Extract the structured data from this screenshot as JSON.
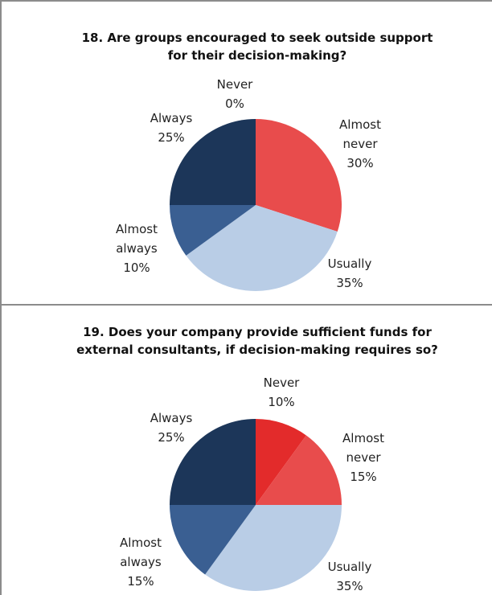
{
  "chart_data": [
    {
      "type": "pie",
      "title_lines": [
        "18. Are groups encouraged to seek outside support",
        "for their decision-making?"
      ],
      "slices": [
        {
          "label_lines": [
            "Never",
            "0%"
          ],
          "value": 0,
          "color": "#e32b2b"
        },
        {
          "label_lines": [
            "Almost",
            "never",
            "30%"
          ],
          "value": 30,
          "color": "#e84c4c"
        },
        {
          "label_lines": [
            "Usually",
            "35%"
          ],
          "value": 35,
          "color": "#b9cde6"
        },
        {
          "label_lines": [
            "Almost",
            "always",
            "10%"
          ],
          "value": 10,
          "color": "#3a5f92"
        },
        {
          "label_lines": [
            "Always",
            "25%"
          ],
          "value": 25,
          "color": "#1c3659"
        }
      ]
    },
    {
      "type": "pie",
      "title_lines": [
        "19. Does your company provide sufficient funds for",
        "external consultants, if decision-making requires so?"
      ],
      "slices": [
        {
          "label_lines": [
            "Never",
            "10%"
          ],
          "value": 10,
          "color": "#e32b2b"
        },
        {
          "label_lines": [
            "Almost",
            "never",
            "15%"
          ],
          "value": 15,
          "color": "#e84c4c"
        },
        {
          "label_lines": [
            "Usually",
            "35%"
          ],
          "value": 35,
          "color": "#b9cde6"
        },
        {
          "label_lines": [
            "Almost",
            "always",
            "15%"
          ],
          "value": 15,
          "color": "#3a5f92"
        },
        {
          "label_lines": [
            "Always",
            "25%"
          ],
          "value": 25,
          "color": "#1c3659"
        }
      ]
    }
  ]
}
